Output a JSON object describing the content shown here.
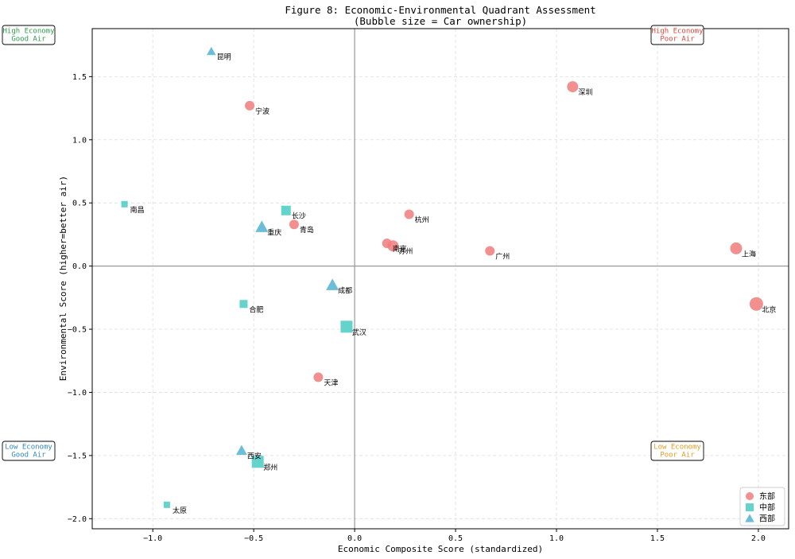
{
  "chart_data": {
    "type": "scatter",
    "title": "Figure 8: Economic-Environmental Quadrant Assessment",
    "subtitle": "(Bubble size = Car ownership)",
    "xlabel": "Economic Composite Score (standardized)",
    "ylabel": "Environmental Score (higher=better air)",
    "xlim": [
      -1.3,
      2.15
    ],
    "ylim": [
      -2.08,
      1.88
    ],
    "xticks": [
      -1.0,
      -0.5,
      0.0,
      0.5,
      1.0,
      1.5,
      2.0
    ],
    "xtick_labels": [
      "−1.0",
      "−0.5",
      "0.0",
      "0.5",
      "1.0",
      "1.5",
      "2.0"
    ],
    "yticks": [
      -2.0,
      -1.5,
      -1.0,
      -0.5,
      0.0,
      0.5,
      1.0,
      1.5
    ],
    "ytick_labels": [
      "−2.0",
      "−1.5",
      "−1.0",
      "−0.5",
      "0.0",
      "0.5",
      "1.0",
      "1.5"
    ],
    "grid": true,
    "reference_lines": {
      "x": 0,
      "y": 0
    },
    "legend_position": "lower-right",
    "series": [
      {
        "name": "东部",
        "marker": "circle",
        "color": "#f08080",
        "points": [
          {
            "label": "深圳",
            "x": 1.08,
            "y": 1.42,
            "size": 7
          },
          {
            "label": "宁波",
            "x": -0.52,
            "y": 1.27,
            "size": 6
          },
          {
            "label": "杭州",
            "x": 0.27,
            "y": 0.41,
            "size": 6
          },
          {
            "label": "青岛",
            "x": -0.3,
            "y": 0.33,
            "size": 6
          },
          {
            "label": "南京",
            "x": 0.16,
            "y": 0.18,
            "size": 6
          },
          {
            "label": "苏州",
            "x": 0.19,
            "y": 0.16,
            "size": 7
          },
          {
            "label": "广州",
            "x": 0.67,
            "y": 0.12,
            "size": 6
          },
          {
            "label": "上海",
            "x": 1.89,
            "y": 0.14,
            "size": 7.5
          },
          {
            "label": "北京",
            "x": 1.99,
            "y": -0.3,
            "size": 8.5
          },
          {
            "label": "天津",
            "x": -0.18,
            "y": -0.88,
            "size": 6
          }
        ]
      },
      {
        "name": "中部",
        "marker": "square",
        "color": "#4ecdc4",
        "points": [
          {
            "label": "南昌",
            "x": -1.14,
            "y": 0.49,
            "size": 4
          },
          {
            "label": "长沙",
            "x": -0.34,
            "y": 0.44,
            "size": 6
          },
          {
            "label": "合肥",
            "x": -0.55,
            "y": -0.3,
            "size": 5
          },
          {
            "label": "武汉",
            "x": -0.04,
            "y": -0.48,
            "size": 7.5
          },
          {
            "label": "郑州",
            "x": -0.48,
            "y": -1.55,
            "size": 7.5
          },
          {
            "label": "太原",
            "x": -0.93,
            "y": -1.89,
            "size": 4
          }
        ]
      },
      {
        "name": "西部",
        "marker": "triangle",
        "color": "#56b4d3",
        "points": [
          {
            "label": "昆明",
            "x": -0.71,
            "y": 1.7,
            "size": 5
          },
          {
            "label": "重庆",
            "x": -0.46,
            "y": 0.31,
            "size": 7
          },
          {
            "label": "成都",
            "x": -0.11,
            "y": -0.15,
            "size": 7
          },
          {
            "label": "西安",
            "x": -0.56,
            "y": -1.46,
            "size": 6
          }
        ]
      }
    ],
    "quadrant_labels": [
      {
        "text": [
          "High Economy",
          "Good Air"
        ],
        "color": "#2e9c4a",
        "position": "top-left"
      },
      {
        "text": [
          "High Economy",
          "Poor Air"
        ],
        "color": "#e0443a",
        "position": "top-right"
      },
      {
        "text": [
          "Low Economy",
          "Good Air"
        ],
        "color": "#2e86c1",
        "position": "bottom-left"
      },
      {
        "text": [
          "Low Economy",
          "Poor Air"
        ],
        "color": "#e69a1c",
        "position": "bottom-right"
      }
    ]
  }
}
